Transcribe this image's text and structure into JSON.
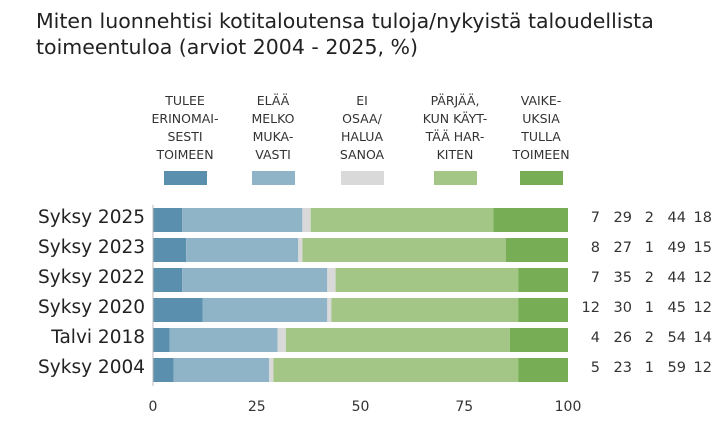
{
  "title": [
    "Miten luonnehtisi kotitaloutensa tuloja/nykyistä taloudellista",
    "toimeentuloa (arviot 2004 - 2025, %)"
  ],
  "chart_data": {
    "type": "bar",
    "orientation": "horizontal-stacked",
    "title": "Miten luonnehtisi kotitaloutensa tuloja/nykyistä taloudellista toimeentuloa (arviot 2004 - 2025, %)",
    "categories": [
      "Syksy 2025",
      "Syksy 2023",
      "Syksy 2022",
      "Syksy 2020",
      "Talvi 2018",
      "Syksy 2004"
    ],
    "series": [
      {
        "name": "TULEE\nERINOMAI-\nSESTI\nTOIMEEN",
        "color": "#5a8fae",
        "values": [
          7,
          8,
          7,
          12,
          4,
          5
        ]
      },
      {
        "name": "ELÄÄ\nMELKO\nMUKA-\nVASTI",
        "color": "#8fb4c8",
        "values": [
          29,
          27,
          35,
          30,
          26,
          23
        ]
      },
      {
        "name": "EI\nOSAA/\nHALUA\nSANOA",
        "color": "#d9d9d9",
        "values": [
          2,
          1,
          2,
          1,
          2,
          1
        ]
      },
      {
        "name": "PÄRJÄÄ,\nKUN KÄYT-\nTÄÄ HAR-\nKITEN",
        "color": "#a3c585",
        "values": [
          44,
          49,
          44,
          45,
          54,
          59
        ]
      },
      {
        "name": "VAIKE-\nUKSIA\nTULLA\nTOIMEEN",
        "color": "#76ad55",
        "values": [
          18,
          15,
          12,
          12,
          14,
          12
        ]
      }
    ],
    "xlim": [
      0,
      100
    ],
    "xticks": [
      "0",
      "25",
      "50",
      "75",
      "100"
    ],
    "legend_position": "top",
    "grid": false
  }
}
